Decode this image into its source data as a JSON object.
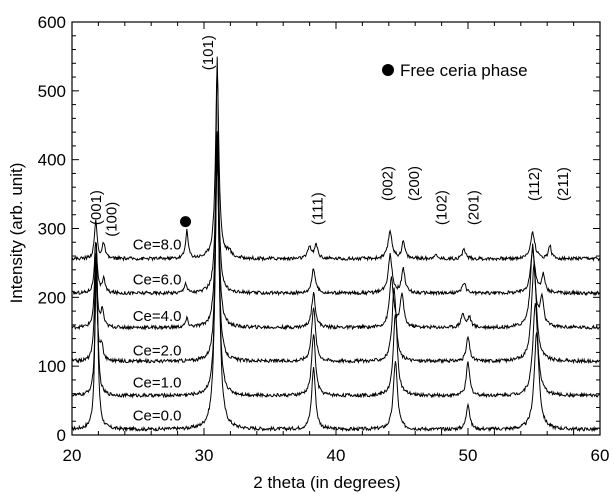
{
  "chart_data": {
    "type": "line",
    "title": "",
    "xlabel": "2 theta (in degrees)",
    "ylabel": "Intensity (arb. unit)",
    "xlim": [
      20,
      60
    ],
    "ylim": [
      0,
      600
    ],
    "xticks": [
      20,
      30,
      40,
      50,
      60
    ],
    "yticks": [
      0,
      100,
      200,
      300,
      400,
      500,
      600
    ],
    "grid": false,
    "legend": {
      "position": "top-right",
      "entries": [
        {
          "marker": "filled-circle",
          "label": "Free ceria phase"
        }
      ]
    },
    "peak_labels": [
      {
        "text": "(001)",
        "x": 21.8,
        "y": 305
      },
      {
        "text": "(100)",
        "x": 23.0,
        "y": 288
      },
      {
        "text": "(101)",
        "x": 30.3,
        "y": 530
      },
      {
        "text": "(111)",
        "x": 38.6,
        "y": 305
      },
      {
        "text": "(002)",
        "x": 43.9,
        "y": 340
      },
      {
        "text": "(200)",
        "x": 45.9,
        "y": 340
      },
      {
        "text": "(102)",
        "x": 48.0,
        "y": 305
      },
      {
        "text": "(201)",
        "x": 50.4,
        "y": 305
      },
      {
        "text": "(112)",
        "x": 55.0,
        "y": 340
      },
      {
        "text": "(211)",
        "x": 57.2,
        "y": 340
      }
    ],
    "ceria_marker": {
      "x": 28.6,
      "y": 310
    },
    "series": [
      {
        "name": "Ce=0.0",
        "label_at": [
          24.6,
          30
        ],
        "baseline": 8,
        "peaks": [
          [
            21.85,
            270,
            0.12
          ],
          [
            31.0,
            540,
            0.15
          ],
          [
            38.3,
            90,
            0.17
          ],
          [
            44.5,
            100,
            0.18
          ],
          [
            50.0,
            38,
            0.15
          ],
          [
            55.2,
            140,
            0.22
          ]
        ]
      },
      {
        "name": "Ce=1.0",
        "label_at": [
          24.6,
          78
        ],
        "baseline": 57,
        "peaks": [
          [
            21.85,
            190,
            0.12
          ],
          [
            31.0,
            380,
            0.15
          ],
          [
            38.3,
            90,
            0.17
          ],
          [
            44.5,
            120,
            0.18
          ],
          [
            50.0,
            48,
            0.15
          ],
          [
            55.1,
            135,
            0.22
          ]
        ]
      },
      {
        "name": "Ce=2.0",
        "label_at": [
          24.6,
          124
        ],
        "baseline": 107,
        "peaks": [
          [
            21.8,
            135,
            0.12
          ],
          [
            22.25,
            22,
            0.12
          ],
          [
            31.0,
            300,
            0.15
          ],
          [
            38.3,
            80,
            0.17
          ],
          [
            44.4,
            105,
            0.18
          ],
          [
            50.0,
            35,
            0.15
          ],
          [
            55.0,
            140,
            0.22
          ]
        ]
      },
      {
        "name": "Ce=4.0",
        "label_at": [
          24.6,
          174
        ],
        "baseline": 156,
        "peaks": [
          [
            21.8,
            105,
            0.12
          ],
          [
            22.3,
            25,
            0.12
          ],
          [
            28.7,
            12,
            0.12
          ],
          [
            31.0,
            270,
            0.15
          ],
          [
            38.3,
            50,
            0.17
          ],
          [
            44.2,
            72,
            0.18
          ],
          [
            45.0,
            48,
            0.15
          ],
          [
            49.6,
            20,
            0.15
          ],
          [
            50.1,
            15,
            0.15
          ],
          [
            54.9,
            118,
            0.2
          ],
          [
            55.6,
            40,
            0.15
          ]
        ]
      },
      {
        "name": "Ce=6.0",
        "label_at": [
          24.6,
          227
        ],
        "baseline": 206,
        "peaks": [
          [
            21.8,
            75,
            0.12
          ],
          [
            22.4,
            22,
            0.12
          ],
          [
            28.6,
            15,
            0.12
          ],
          [
            31.0,
            235,
            0.15
          ],
          [
            38.3,
            35,
            0.17
          ],
          [
            44.1,
            55,
            0.18
          ],
          [
            45.1,
            35,
            0.15
          ],
          [
            49.7,
            16,
            0.15
          ],
          [
            54.9,
            62,
            0.2
          ],
          [
            55.7,
            25,
            0.15
          ]
        ]
      },
      {
        "name": "Ce=8.0",
        "label_at": [
          24.6,
          278
        ],
        "baseline": 256,
        "peaks": [
          [
            21.8,
            55,
            0.12
          ],
          [
            22.4,
            22,
            0.12
          ],
          [
            28.7,
            40,
            0.12
          ],
          [
            31.0,
            275,
            0.15
          ],
          [
            31.9,
            8,
            0.2
          ],
          [
            38.0,
            18,
            0.15
          ],
          [
            38.5,
            20,
            0.15
          ],
          [
            44.1,
            40,
            0.18
          ],
          [
            45.1,
            24,
            0.15
          ],
          [
            47.5,
            6,
            0.15
          ],
          [
            49.7,
            14,
            0.15
          ],
          [
            54.9,
            38,
            0.2
          ],
          [
            56.2,
            20,
            0.12
          ]
        ]
      }
    ]
  }
}
